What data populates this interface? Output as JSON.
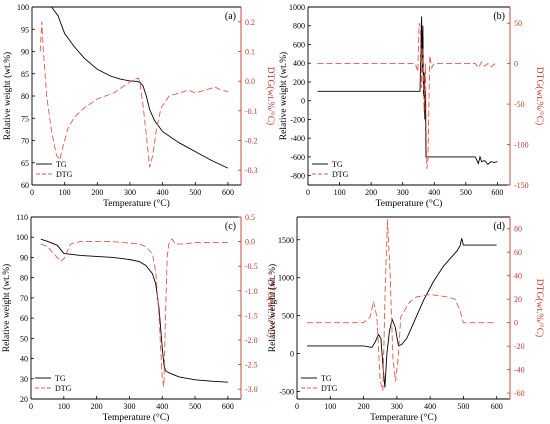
{
  "chart_data": [
    {
      "panel": "a",
      "label": "(a)",
      "type": "line",
      "xlabel": "Temperature (°C)",
      "ylabel": "Relative weight (wt.%)",
      "y2label": "DTG(wt.%/°C)",
      "xlim": [
        0,
        640
      ],
      "ylim": [
        60,
        100
      ],
      "y2lim": [
        -0.35,
        0.25
      ],
      "xticks": [
        0,
        100,
        200,
        300,
        400,
        500,
        600
      ],
      "yticks": [
        60,
        65,
        70,
        75,
        80,
        85,
        90,
        95,
        100
      ],
      "y2ticks": [
        -0.3,
        -0.2,
        -0.1,
        0.0,
        0.1,
        0.2
      ],
      "y2ticklabels": [
        "-0.3",
        "-0.2",
        "-0.1",
        "0.0",
        "0.1",
        "0.2"
      ],
      "legend": {
        "position": "bottom-left",
        "entries": [
          "TG",
          "DTG"
        ]
      },
      "series": [
        {
          "name": "TG",
          "axis": "left",
          "color": "#000000",
          "dash": "solid",
          "x": [
            30,
            60,
            80,
            100,
            130,
            160,
            200,
            240,
            270,
            300,
            320,
            330,
            340,
            350,
            360,
            375,
            400,
            450,
            500,
            550,
            600
          ],
          "y": [
            100,
            100,
            98,
            94,
            91,
            88.5,
            86,
            84.5,
            83.8,
            83.4,
            83.3,
            83.1,
            82.3,
            80,
            77,
            74.5,
            72,
            69.5,
            67.5,
            65.5,
            63.8
          ]
        },
        {
          "name": "DTG",
          "axis": "right",
          "color": "#e05a4e",
          "dash": "6,3",
          "x": [
            25,
            30,
            35,
            45,
            60,
            75,
            85,
            95,
            110,
            130,
            160,
            200,
            250,
            290,
            310,
            325,
            330,
            340,
            350,
            360,
            370,
            380,
            395,
            420,
            450,
            480,
            500,
            530,
            560,
            580,
            600
          ],
          "y": [
            0.1,
            0.2,
            0.1,
            -0.05,
            -0.17,
            -0.25,
            -0.265,
            -0.22,
            -0.16,
            -0.12,
            -0.09,
            -0.06,
            -0.04,
            -0.01,
            0.005,
            0.01,
            0.0,
            -0.08,
            -0.18,
            -0.29,
            -0.25,
            -0.17,
            -0.09,
            -0.05,
            -0.04,
            -0.03,
            -0.04,
            -0.03,
            -0.02,
            -0.03,
            -0.035
          ]
        }
      ]
    },
    {
      "panel": "b",
      "label": "(b)",
      "type": "line",
      "xlabel": "Temperature (°C)",
      "ylabel": "Relative weight (wt.%)",
      "y2label": "DTG(wt.%/°C)",
      "xlim": [
        0,
        640
      ],
      "ylim": [
        -900,
        1000
      ],
      "y2lim": [
        -150,
        70
      ],
      "xticks": [
        0,
        100,
        200,
        300,
        400,
        500,
        600
      ],
      "yticks": [
        -800,
        -600,
        -400,
        -200,
        0,
        200,
        400,
        600,
        800,
        1000
      ],
      "y2ticks": [
        -150,
        -100,
        -50,
        0,
        50
      ],
      "y2ticklabels": [
        "-150",
        "-100",
        "-50",
        "0",
        "50"
      ],
      "legend": {
        "position": "bottom-left",
        "entries": [
          "TG",
          "DTG"
        ]
      },
      "series": [
        {
          "name": "TG",
          "axis": "left",
          "color": "#000000",
          "dash": "solid",
          "x": [
            30,
            100,
            200,
            300,
            350,
            355,
            358,
            360,
            362,
            364,
            366,
            368,
            370,
            372,
            374,
            376,
            380,
            400,
            450,
            500,
            530,
            540,
            545,
            550,
            560,
            570,
            580,
            590,
            600
          ],
          "y": [
            100,
            100,
            100,
            100,
            100,
            100,
            600,
            900,
            300,
            800,
            50,
            300,
            -200,
            100,
            -600,
            -600,
            -600,
            -600,
            -600,
            -600,
            -600,
            -670,
            -600,
            -650,
            -640,
            -680,
            -650,
            -660,
            -650
          ]
        },
        {
          "name": "DTG",
          "axis": "right",
          "color": "#e05a4e",
          "dash": "6,3",
          "x": [
            30,
            100,
            200,
            300,
            340,
            348,
            352,
            356,
            360,
            364,
            368,
            372,
            376,
            380,
            386,
            392,
            400,
            450,
            500,
            530,
            540,
            550,
            560,
            570,
            580,
            600
          ],
          "y": [
            0,
            0,
            0,
            0,
            0,
            -10,
            50,
            45,
            -30,
            20,
            -60,
            0,
            -130,
            -120,
            10,
            -5,
            0,
            0,
            0,
            0,
            -5,
            2,
            -3,
            0,
            -4,
            2
          ]
        }
      ]
    },
    {
      "panel": "c",
      "label": "(c)",
      "type": "line",
      "xlabel": "Temperature (°C)",
      "ylabel": "Relative weight (wt.%)",
      "y2label": "DTG(wt.%/°C)",
      "xlim": [
        0,
        640
      ],
      "ylim": [
        20,
        110
      ],
      "y2lim": [
        -3.2,
        0.5
      ],
      "xticks": [
        0,
        100,
        200,
        300,
        400,
        500,
        600
      ],
      "yticks": [
        20,
        30,
        40,
        50,
        60,
        70,
        80,
        90,
        100,
        110
      ],
      "y2ticks": [
        -3.0,
        -2.5,
        -2.0,
        -1.5,
        -1.0,
        -0.5,
        0.0,
        0.5
      ],
      "y2ticklabels": [
        "-3.0",
        "-2.5",
        "-2.0",
        "-1.5",
        "-1.0",
        "-0.5",
        "0.0",
        "0.5"
      ],
      "legend": {
        "position": "bottom-left",
        "entries": [
          "TG",
          "DTG"
        ]
      },
      "series": [
        {
          "name": "TG",
          "axis": "left",
          "color": "#000000",
          "dash": "solid",
          "x": [
            30,
            50,
            80,
            100,
            150,
            200,
            250,
            300,
            330,
            350,
            370,
            380,
            390,
            400,
            405,
            410,
            420,
            450,
            500,
            550,
            600
          ],
          "y": [
            99,
            98,
            96,
            92,
            91,
            90.5,
            90,
            89,
            88,
            86,
            82,
            77,
            65,
            45,
            37,
            34,
            33,
            31,
            29.5,
            28.8,
            28.3
          ]
        },
        {
          "name": "DTG",
          "axis": "right",
          "color": "#e05a4e",
          "dash": "6,3",
          "x": [
            30,
            50,
            70,
            90,
            100,
            120,
            150,
            200,
            250,
            300,
            330,
            350,
            370,
            380,
            390,
            400,
            405,
            410,
            415,
            420,
            430,
            440,
            460,
            500,
            550,
            600
          ],
          "y": [
            -0.05,
            -0.1,
            -0.25,
            -0.4,
            -0.35,
            -0.05,
            0.0,
            0.0,
            0.0,
            -0.03,
            -0.05,
            -0.1,
            -0.25,
            -0.6,
            -1.5,
            -2.8,
            -2.95,
            -1.5,
            -0.3,
            -0.05,
            0.05,
            -0.05,
            -0.05,
            -0.02,
            -0.02,
            -0.02
          ]
        }
      ]
    },
    {
      "panel": "d",
      "label": "(d)",
      "type": "line",
      "xlabel": "Temperature (°C)",
      "ylabel": "Relative weight (wt.%)",
      "y2label": "DTG(wt.%/°C)",
      "xlim": [
        0,
        640
      ],
      "ylim": [
        -600,
        1800
      ],
      "y2lim": [
        -65,
        90
      ],
      "xticks": [
        0,
        100,
        200,
        300,
        400,
        500,
        600
      ],
      "yticks": [
        -500,
        0,
        500,
        1000,
        1500
      ],
      "y2ticks": [
        -60,
        -40,
        -20,
        0,
        20,
        40,
        60,
        80
      ],
      "y2ticklabels": [
        "-60",
        "-40",
        "-20",
        "0",
        "20",
        "40",
        "60",
        "80"
      ],
      "legend": {
        "position": "bottom-left",
        "entries": [
          "TG",
          "DTG"
        ]
      },
      "series": [
        {
          "name": "TG",
          "axis": "left",
          "color": "#000000",
          "dash": "solid",
          "x": [
            30,
            100,
            200,
            225,
            235,
            245,
            252,
            258,
            264,
            270,
            278,
            286,
            295,
            305,
            315,
            330,
            350,
            380,
            410,
            440,
            460,
            480,
            490,
            495,
            500,
            550,
            600
          ],
          "y": [
            100,
            100,
            100,
            80,
            150,
            250,
            200,
            -150,
            -450,
            0,
            300,
            450,
            350,
            100,
            120,
            200,
            400,
            700,
            950,
            1150,
            1250,
            1350,
            1420,
            1520,
            1430,
            1430,
            1430
          ]
        },
        {
          "name": "DTG",
          "axis": "right",
          "color": "#e05a4e",
          "dash": "6,3",
          "x": [
            30,
            100,
            200,
            220,
            230,
            240,
            250,
            258,
            265,
            272,
            280,
            288,
            296,
            304,
            312,
            322,
            340,
            360,
            400,
            450,
            475,
            490,
            500,
            550,
            600
          ],
          "y": [
            0,
            0,
            0,
            5,
            18,
            5,
            -50,
            -58,
            30,
            88,
            40,
            -30,
            -50,
            -30,
            5,
            10,
            18,
            22,
            24,
            22,
            20,
            10,
            0,
            0,
            0
          ]
        }
      ]
    }
  ]
}
